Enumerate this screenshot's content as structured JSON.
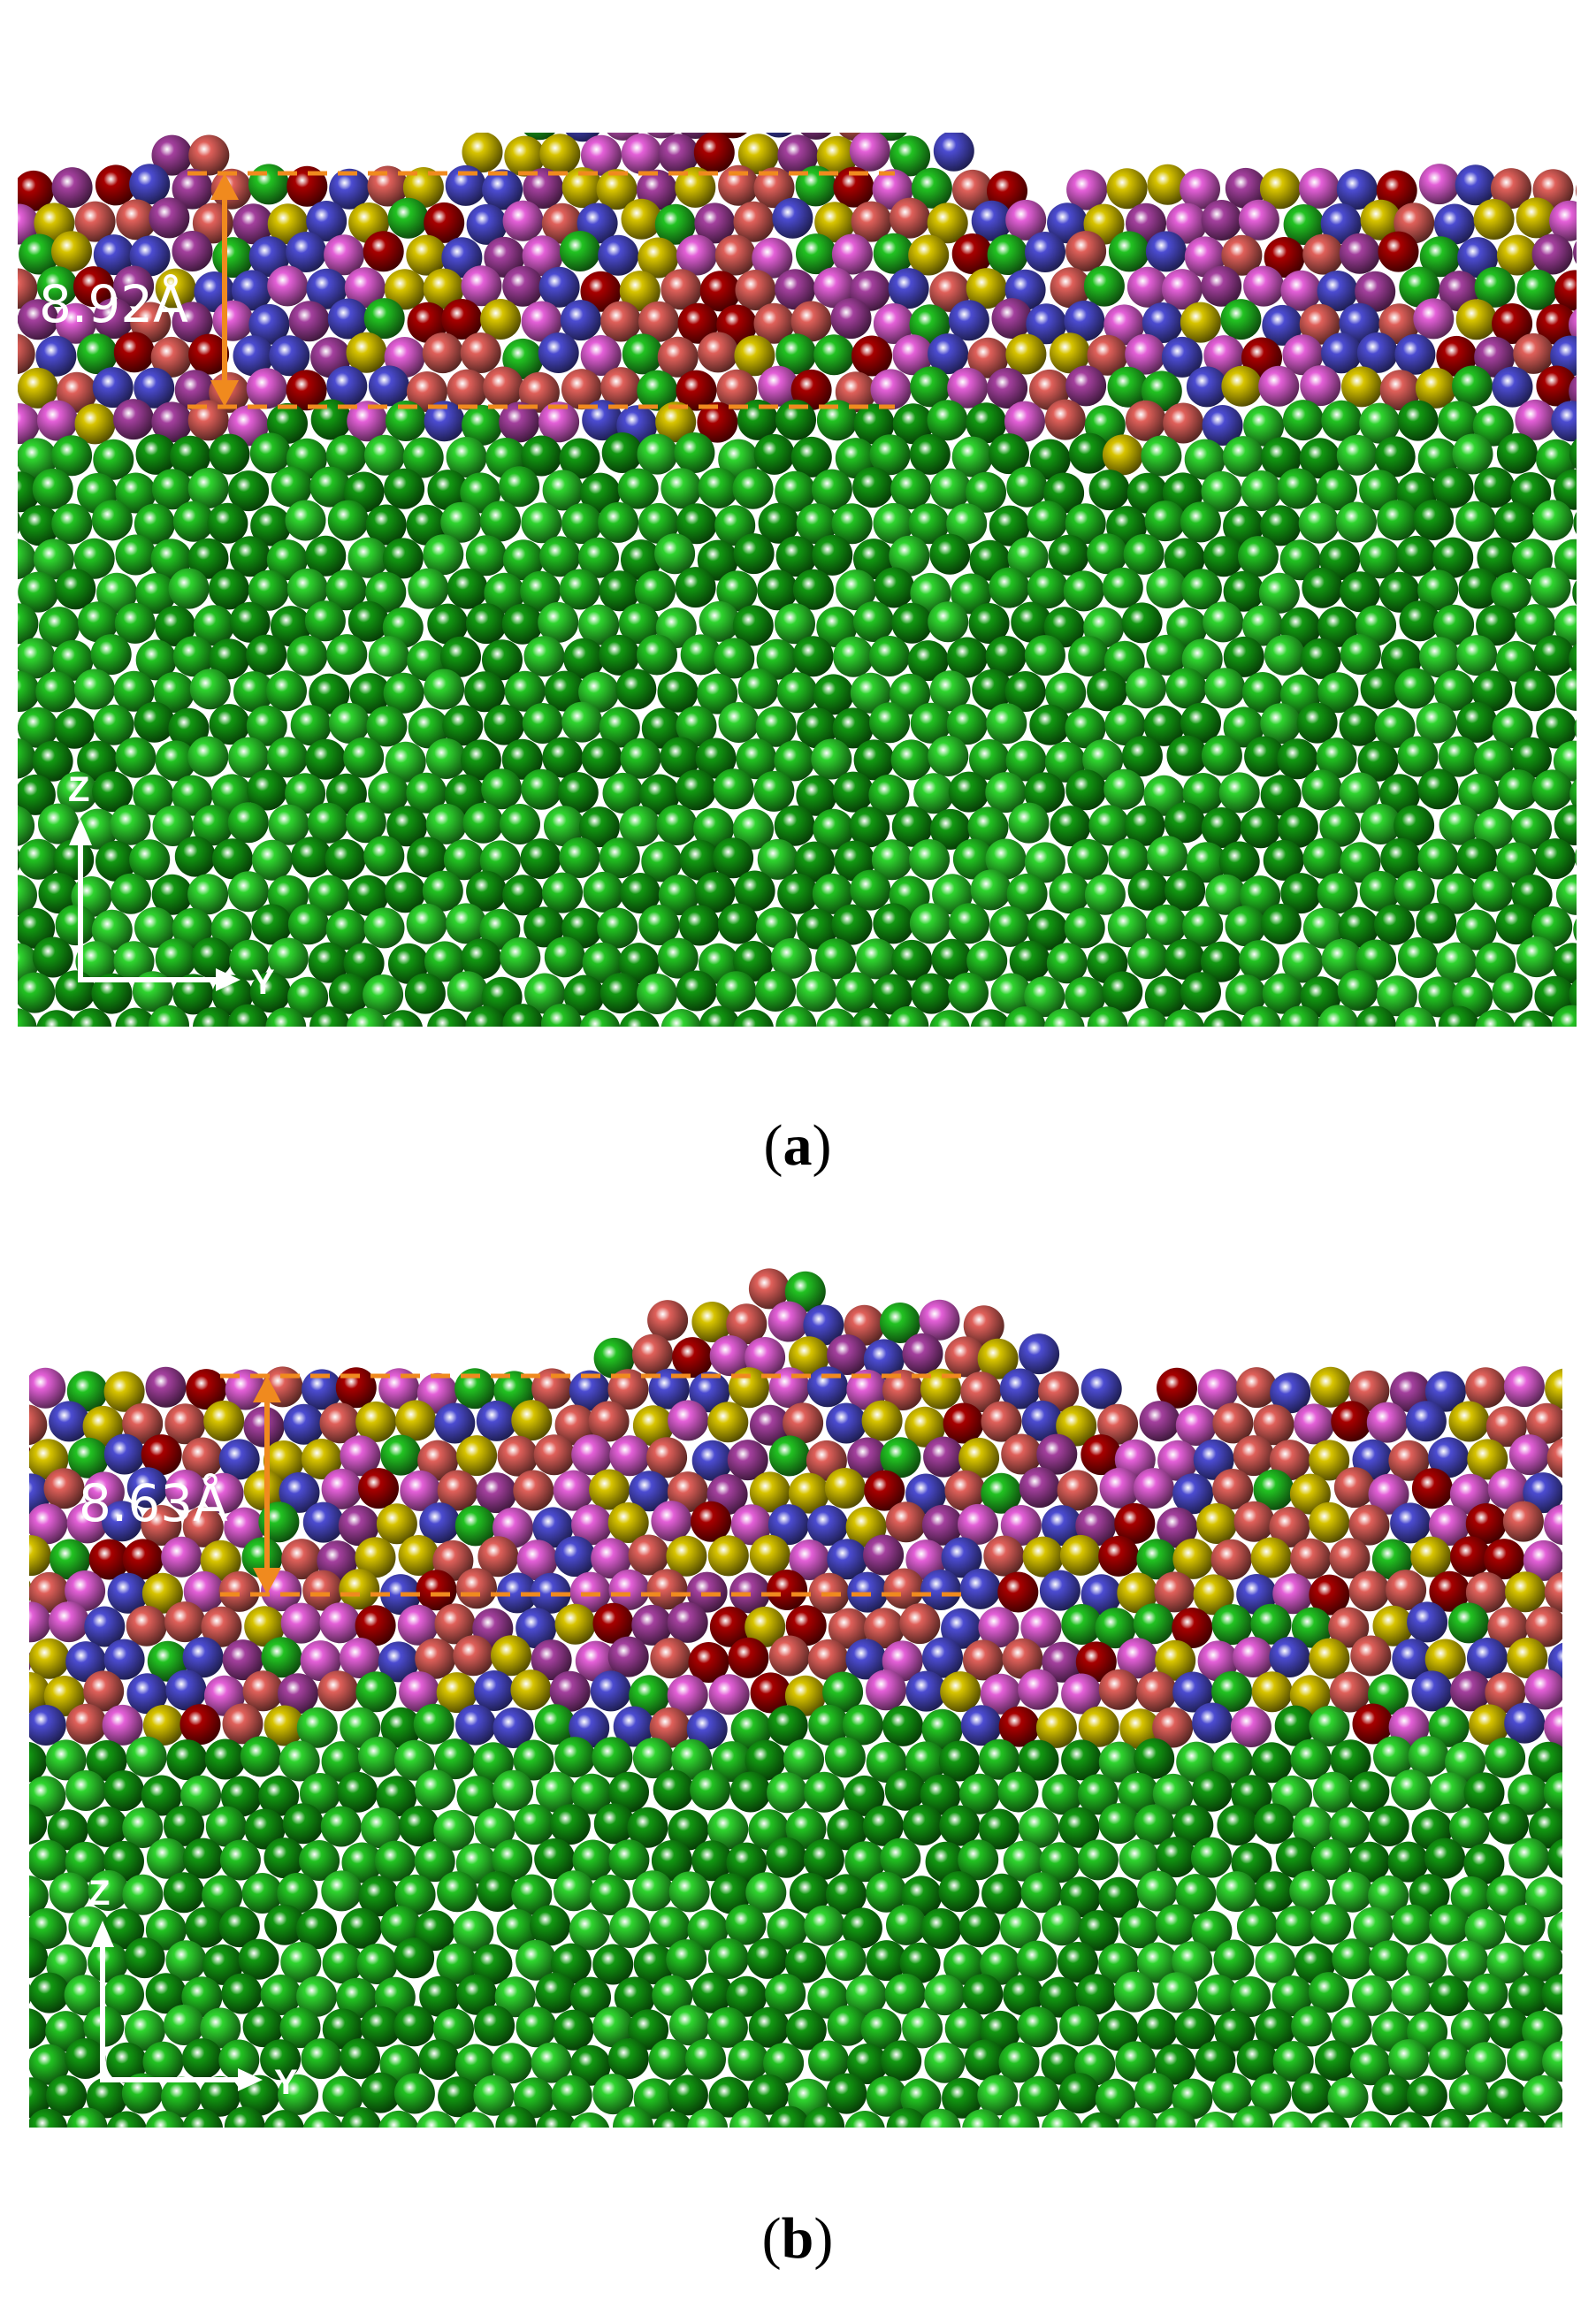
{
  "panels": [
    {
      "measurement": "8.92Å",
      "axes": {
        "z": "Z",
        "y": "Y"
      },
      "caption": {
        "open": "(",
        "letter": "a",
        "close": ")"
      }
    },
    {
      "measurement": "8.63Å",
      "axes": {
        "z": "Z",
        "y": "Y"
      },
      "caption": {
        "open": "(",
        "letter": "b",
        "close": ")"
      }
    }
  ]
}
